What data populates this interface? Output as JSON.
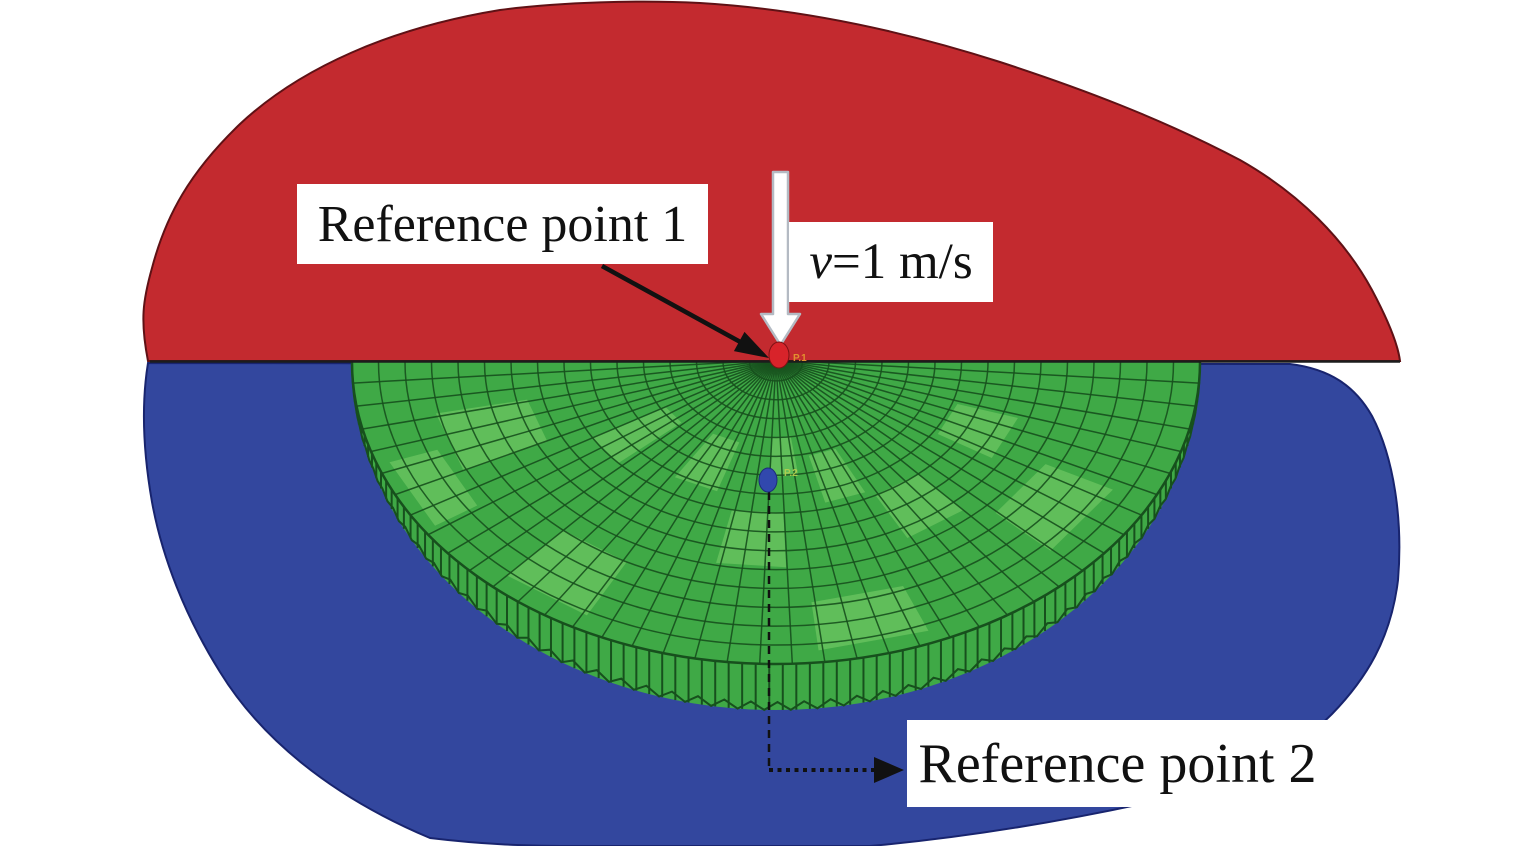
{
  "labels": {
    "ref1": "Reference point 1",
    "ref2": "Reference point 2",
    "velocity": {
      "symbol": "v",
      "rest": "=1 m/s"
    },
    "marker1": "P.1",
    "marker2": "P.2"
  },
  "colors": {
    "background": "#ffffff",
    "indenter_red": "#c32a2f",
    "indenter_outline": "#5f1115",
    "lower_body_blue": "#33479e",
    "lower_body_outline": "#18246e",
    "specimen_face_green": "#3fa946",
    "specimen_light_green": "#82d36e",
    "specimen_mesh_dark": "#17501d",
    "contact_line": "#1c1c1c",
    "annotation_black": "#111111",
    "white_arrow_fill": "#ffffff",
    "white_arrow_outline": "#b4bac3",
    "ref1_dot": "#d8232a",
    "ref1_dot_outline": "#7e1114",
    "ref2_dot": "#3148ad",
    "ref2_dot_outline": "#1d2d7a",
    "marker1_text": "#e2912f",
    "marker2_text": "#b8cf4e"
  },
  "mesh": {
    "rings": 16,
    "radial_lines": 40,
    "wall_teeth": 96
  }
}
